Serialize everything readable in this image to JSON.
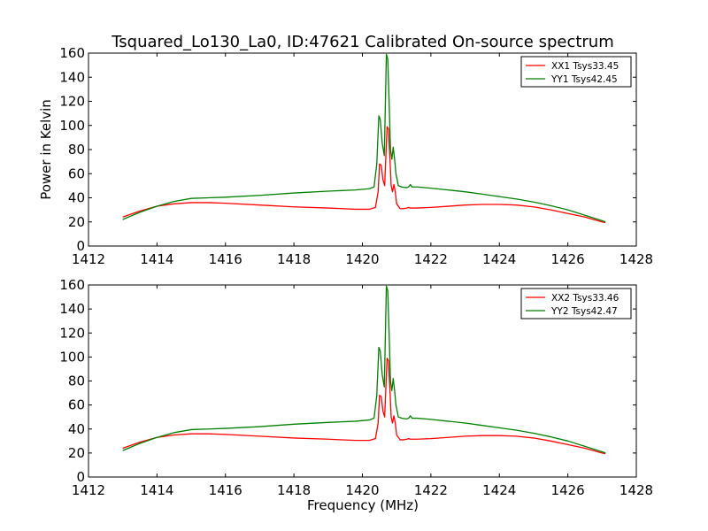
{
  "chart_data": [
    {
      "type": "line",
      "title": "Tsquared_Lo130_La0, ID:47621 Calibrated On-source spectrum",
      "xlabel": "",
      "ylabel": "Power in Kelvin",
      "xlim": [
        1412,
        1428
      ],
      "ylim": [
        0,
        160
      ],
      "xticks": [
        1412,
        1414,
        1416,
        1418,
        1420,
        1422,
        1424,
        1426,
        1428
      ],
      "yticks": [
        0,
        20,
        40,
        60,
        80,
        100,
        120,
        140,
        160
      ],
      "grid": false,
      "legend": "top-right",
      "series": [
        {
          "name": "XX1 Tsys33.45",
          "color": "#ff0000",
          "x": [
            1413.0,
            1413.5,
            1414.0,
            1414.5,
            1415.0,
            1415.5,
            1416.0,
            1417.0,
            1418.0,
            1419.0,
            1419.8,
            1420.2,
            1420.38,
            1420.46,
            1420.5,
            1420.55,
            1420.6,
            1420.65,
            1420.72,
            1420.76,
            1420.8,
            1420.84,
            1420.88,
            1420.92,
            1420.96,
            1421.0,
            1421.1,
            1421.2,
            1421.3,
            1421.35,
            1421.4,
            1421.6,
            1422.0,
            1422.5,
            1423.0,
            1423.5,
            1424.0,
            1424.5,
            1425.0,
            1425.5,
            1426.0,
            1426.5,
            1427.0,
            1427.1
          ],
          "values": [
            24,
            29,
            33,
            35,
            36,
            36,
            35.5,
            34,
            32.5,
            31.5,
            30.5,
            30.5,
            32,
            45,
            68,
            67,
            55,
            50,
            99,
            97,
            75,
            50,
            45,
            51,
            45,
            35,
            31,
            31,
            31.5,
            32,
            31.5,
            31.5,
            32,
            33,
            34,
            34.5,
            34.5,
            34,
            32.5,
            30,
            27,
            24,
            20,
            19.5
          ]
        },
        {
          "name": "YY1 Tsys42.45",
          "color": "#008000",
          "x": [
            1413.0,
            1413.5,
            1414.0,
            1414.5,
            1415.0,
            1415.5,
            1416.0,
            1417.0,
            1418.0,
            1419.0,
            1419.8,
            1420.2,
            1420.34,
            1420.42,
            1420.48,
            1420.52,
            1420.58,
            1420.64,
            1420.7,
            1420.74,
            1420.78,
            1420.82,
            1420.86,
            1420.9,
            1420.94,
            1420.98,
            1421.05,
            1421.15,
            1421.25,
            1421.3,
            1421.35,
            1421.4,
            1421.45,
            1421.6,
            1422.0,
            1422.5,
            1423.0,
            1423.5,
            1424.0,
            1424.5,
            1425.0,
            1425.5,
            1426.0,
            1426.5,
            1427.0,
            1427.1
          ],
          "values": [
            22,
            28,
            33,
            37,
            39.5,
            40,
            40.5,
            42,
            44,
            45.5,
            46.5,
            47.5,
            49,
            68,
            108,
            105,
            85,
            75,
            159,
            155,
            120,
            80,
            72,
            82,
            72,
            60,
            50,
            49,
            48.5,
            48.5,
            49,
            51,
            49,
            49,
            48,
            46.5,
            45,
            43,
            41,
            39,
            36.5,
            33.5,
            30,
            25.5,
            21,
            20
          ]
        }
      ]
    },
    {
      "type": "line",
      "title": "",
      "xlabel": "Frequency (MHz)",
      "ylabel": "",
      "xlim": [
        1412,
        1428
      ],
      "ylim": [
        0,
        160
      ],
      "xticks": [
        1412,
        1414,
        1416,
        1418,
        1420,
        1422,
        1424,
        1426,
        1428
      ],
      "yticks": [
        0,
        20,
        40,
        60,
        80,
        100,
        120,
        140,
        160
      ],
      "grid": false,
      "legend": "top-right",
      "series": [
        {
          "name": "XX2 Tsys33.46",
          "color": "#ff0000",
          "x": [
            1413.0,
            1413.5,
            1414.0,
            1414.5,
            1415.0,
            1415.5,
            1416.0,
            1417.0,
            1418.0,
            1419.0,
            1419.8,
            1420.2,
            1420.38,
            1420.46,
            1420.5,
            1420.55,
            1420.6,
            1420.65,
            1420.72,
            1420.76,
            1420.8,
            1420.84,
            1420.88,
            1420.92,
            1420.96,
            1421.0,
            1421.1,
            1421.2,
            1421.3,
            1421.35,
            1421.4,
            1421.6,
            1422.0,
            1422.5,
            1423.0,
            1423.5,
            1424.0,
            1424.5,
            1425.0,
            1425.5,
            1426.0,
            1426.5,
            1427.0,
            1427.1
          ],
          "values": [
            24,
            29,
            33,
            35,
            36,
            36,
            35.5,
            34,
            32.5,
            31.5,
            30.5,
            30.5,
            32,
            45,
            68,
            67,
            55,
            50,
            99,
            97,
            75,
            50,
            45,
            51,
            45,
            35,
            31,
            31,
            31.5,
            32,
            31.5,
            31.5,
            32,
            33,
            34,
            34.5,
            34.5,
            34,
            32.5,
            30,
            27,
            24,
            20,
            19.5
          ]
        },
        {
          "name": "YY2 Tsys42.47",
          "color": "#008000",
          "x": [
            1413.0,
            1413.5,
            1414.0,
            1414.5,
            1415.0,
            1415.5,
            1416.0,
            1417.0,
            1418.0,
            1419.0,
            1419.8,
            1420.2,
            1420.34,
            1420.42,
            1420.48,
            1420.52,
            1420.58,
            1420.64,
            1420.7,
            1420.74,
            1420.78,
            1420.82,
            1420.86,
            1420.9,
            1420.94,
            1420.98,
            1421.05,
            1421.15,
            1421.25,
            1421.3,
            1421.35,
            1421.4,
            1421.45,
            1421.6,
            1422.0,
            1422.5,
            1423.0,
            1423.5,
            1424.0,
            1424.5,
            1425.0,
            1425.5,
            1426.0,
            1426.5,
            1427.0,
            1427.1
          ],
          "values": [
            22,
            28,
            33,
            37,
            39.5,
            40,
            40.5,
            42,
            44,
            45.5,
            46.5,
            47.5,
            49,
            68,
            108,
            105,
            85,
            75,
            159,
            155,
            120,
            80,
            72,
            82,
            72,
            60,
            50,
            49,
            48.5,
            48.5,
            49,
            51,
            49,
            49,
            48,
            46.5,
            45,
            43,
            41,
            39,
            36.5,
            33.5,
            30,
            25.5,
            21,
            20
          ]
        }
      ]
    }
  ]
}
